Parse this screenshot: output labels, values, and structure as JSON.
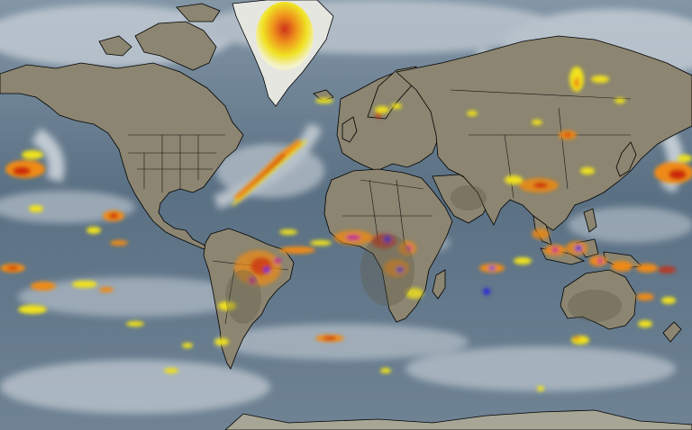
{
  "map": {
    "projection": "mercator",
    "style": "infrared satellite composite",
    "colors": {
      "ocean": "#607688",
      "ocean_light": "#8a9cab",
      "land": "#8a8470",
      "land_dark": "#6e6a58",
      "ice": "#e2e3e0",
      "cloud": "#e6eaef",
      "border": "#000000",
      "storm_yellow": "#f0e21a",
      "storm_orange": "#ef8a12",
      "storm_red": "#cc2a10",
      "storm_magenta": "#c0208e",
      "storm_blue": "#2a2ad8"
    }
  }
}
